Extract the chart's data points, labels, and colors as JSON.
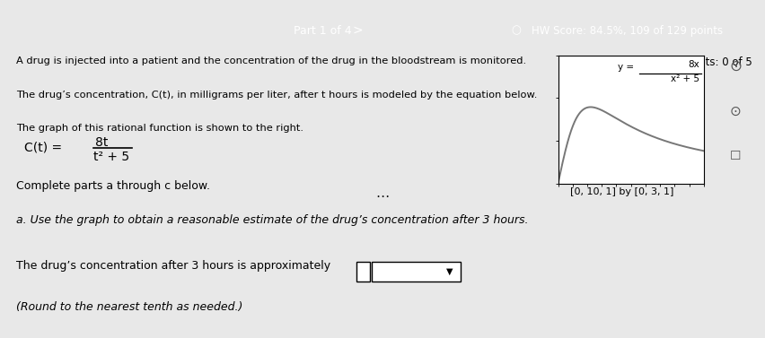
{
  "title_bar_text": "Part 1 of 4",
  "hw_score_text": "HW Score: 84.5%, 109 of 129 points",
  "points_text": "Points: 0 of 5",
  "problem_line1": "A drug is injected into a patient and the concentration of the drug in the bloodstream is monitored.",
  "problem_line2": "The drug’s concentration, C(t), in milligrams per liter, after t hours is modeled by the equation below.",
  "problem_line3": "The graph of this rational function is shown to the right.",
  "complete_parts_text": "Complete parts a through c below.",
  "part_a_text": "a. Use the graph to obtain a reasonable estimate of the drug’s concentration after 3 hours.",
  "answer_line": "The drug’s concentration after 3 hours is approximately",
  "round_note": "(Round to the nearest tenth as needed.)",
  "graph_window": "[0, 10, 1] by [0, 3, 1]",
  "dots": "⋯",
  "x_min": 0,
  "x_max": 10,
  "y_min": 0,
  "y_max": 3,
  "header_color": "#3d7fc1",
  "bg_color": "#e8e8e8",
  "graph_line_color": "#777777",
  "graph_bg": "#ffffff",
  "circle_icon_color": "#888888"
}
